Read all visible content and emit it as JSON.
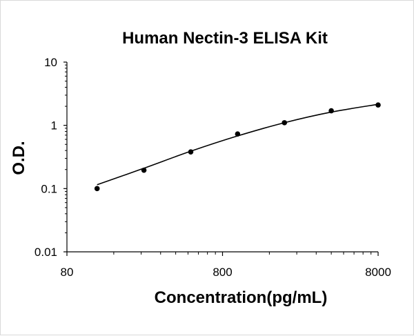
{
  "chart_data": {
    "type": "scatter",
    "title": "Human Nectin-3 ELISA Kit",
    "xlabel": "Concentration(pg/mL)",
    "ylabel": "O.D.",
    "x_scale": "log",
    "y_scale": "log",
    "xlim": [
      80,
      8000
    ],
    "ylim": [
      0.01,
      10
    ],
    "x_ticks": [
      80,
      800,
      8000
    ],
    "x_tick_labels": [
      "80",
      "800",
      "8000"
    ],
    "y_ticks": [
      10,
      1,
      0.1,
      0.01
    ],
    "y_tick_labels": [
      "10",
      "1",
      "0.1",
      "0.01"
    ],
    "grid": false,
    "legend": "none",
    "series": [
      {
        "points": [
          {
            "x": 125,
            "y": 0.1
          },
          {
            "x": 250,
            "y": 0.195
          },
          {
            "x": 500,
            "y": 0.38
          },
          {
            "x": 1000,
            "y": 0.73
          },
          {
            "x": 2000,
            "y": 1.1
          },
          {
            "x": 4000,
            "y": 1.7
          },
          {
            "x": 8000,
            "y": 2.1
          }
        ],
        "fit_curve": [
          {
            "x": 125,
            "y": 0.115
          },
          {
            "x": 250,
            "y": 0.21
          },
          {
            "x": 500,
            "y": 0.39
          },
          {
            "x": 1000,
            "y": 0.68
          },
          {
            "x": 2000,
            "y": 1.1
          },
          {
            "x": 4000,
            "y": 1.62
          },
          {
            "x": 8000,
            "y": 2.15
          }
        ]
      }
    ],
    "colors": {
      "marker": "#000000",
      "line": "#000000",
      "axis": "#000000"
    }
  }
}
